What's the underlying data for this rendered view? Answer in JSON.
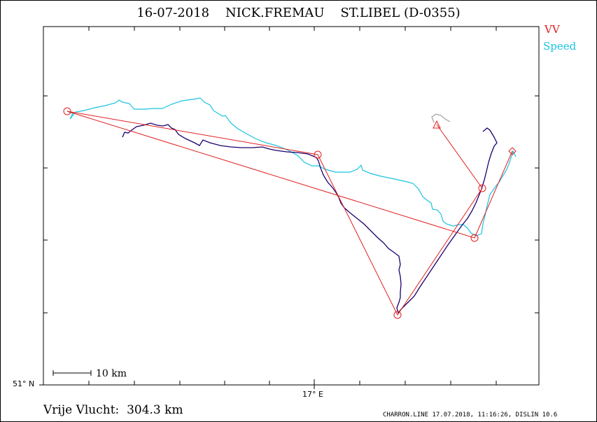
{
  "title": "16-07-2018    NICK.FREMAU    ST.LIBEL (D-0355)",
  "legend": {
    "vv": "VV",
    "speed": "Speed",
    "vv_color": "#e02020",
    "speed_color": "#19c3e0",
    "track_color": "#1a0070"
  },
  "axes": {
    "y_label": "51° N",
    "x_label": "17° E"
  },
  "scale_bar": {
    "label": "10 km"
  },
  "distance_text": "Vrije Vlucht:  304.3 km",
  "footer": "CHARRON.LINE 17.07.2018, 11:16:26, DISLIN 10.6"
}
